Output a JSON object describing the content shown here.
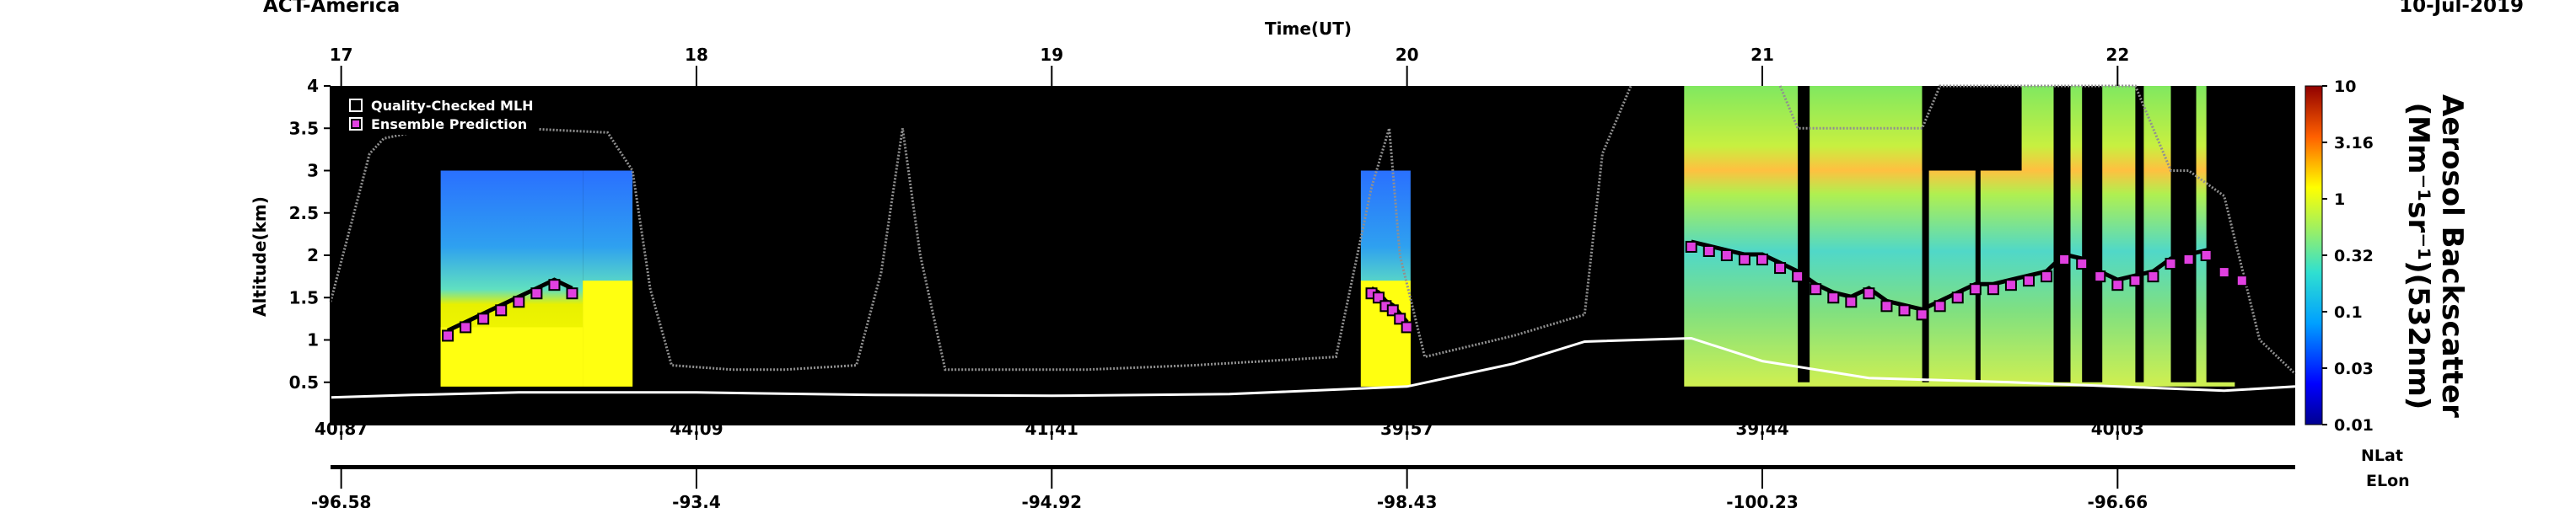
{
  "header": {
    "title": "ACT-America",
    "date": "10-Jul-2019"
  },
  "chart_data": {
    "type": "heatmap",
    "xlabel": "Time(UT)",
    "ylabel": "Altitude(km)",
    "xlim": [
      16.97,
      22.5
    ],
    "ylim": [
      0,
      4
    ],
    "x_ticks": [
      "17",
      "18",
      "19",
      "20",
      "21",
      "22"
    ],
    "y_ticks": [
      "0.5",
      "1",
      "1.5",
      "2",
      "2.5",
      "3",
      "3.5",
      "4"
    ],
    "nlat_ticks": [
      "40.87",
      "44.09",
      "41.41",
      "39.57",
      "39.44",
      "40.03"
    ],
    "elon_ticks": [
      "-96.58",
      "-93.4",
      "-94.92",
      "-98.43",
      "-100.23",
      "-96.66"
    ],
    "nlat_label": "NLat",
    "elon_label": "ELon",
    "colorbar": {
      "title_line1": "Aerosol Backscatter",
      "title_line2": "(Mm⁻¹sr⁻¹)(532nm)",
      "scale": "log",
      "ticks": [
        "10",
        "3.16",
        "1",
        "0.32",
        "0.1",
        "0.03",
        "0.01"
      ]
    },
    "legend": [
      {
        "label": "Quality-Checked MLH",
        "color": "#ffffff"
      },
      {
        "label": "Ensemble Prediction",
        "color": "#e040e0"
      }
    ],
    "series": {
      "aircraft_altitude": {
        "x": [
          16.97,
          17.03,
          17.08,
          17.12,
          17.2,
          17.35,
          17.5,
          17.75,
          17.82,
          17.87,
          17.93,
          18.1,
          18.25,
          18.45,
          18.52,
          18.58,
          18.63,
          18.7,
          18.85,
          19.1,
          19.4,
          19.8,
          19.9,
          19.95,
          19.98,
          20.05,
          20.3,
          20.5,
          20.55,
          20.63
        ],
        "y": [
          1.45,
          2.4,
          3.2,
          3.38,
          3.45,
          3.5,
          3.5,
          3.45,
          3.0,
          1.6,
          0.7,
          0.65,
          0.65,
          0.7,
          1.8,
          3.5,
          2.0,
          0.65,
          0.65,
          0.65,
          0.7,
          0.8,
          2.8,
          3.5,
          2.0,
          0.8,
          1.05,
          1.3,
          3.2,
          4.0
        ]
      },
      "aircraft_altitude_late": {
        "x": [
          21.05,
          21.1,
          21.45,
          21.5,
          21.6,
          21.75,
          22.05,
          22.15,
          22.2,
          22.3,
          22.4,
          22.5
        ],
        "y": [
          4.0,
          3.5,
          3.5,
          4.0,
          4.0,
          4.0,
          4.0,
          3.0,
          3.0,
          2.7,
          1.0,
          0.6
        ]
      },
      "terrain_mlh": {
        "x": [
          16.97,
          17.2,
          17.5,
          18.0,
          18.5,
          19.0,
          19.5,
          20.0,
          20.3,
          20.5,
          20.8,
          21.0,
          21.3,
          21.7,
          22.0,
          22.3,
          22.5
        ],
        "y": [
          0.32,
          0.35,
          0.38,
          0.38,
          0.35,
          0.34,
          0.36,
          0.45,
          0.72,
          0.98,
          1.02,
          0.75,
          0.55,
          0.5,
          0.45,
          0.4,
          0.45
        ]
      },
      "ensemble_prediction": {
        "x": [
          17.3,
          17.35,
          17.4,
          17.45,
          17.5,
          17.55,
          17.6,
          17.65,
          19.9,
          19.92,
          19.94,
          19.96,
          19.98,
          20.0,
          20.8,
          20.85,
          20.9,
          20.95,
          21.0,
          21.05,
          21.1,
          21.15,
          21.2,
          21.25,
          21.3,
          21.35,
          21.4,
          21.45,
          21.5,
          21.55,
          21.6,
          21.65,
          21.7,
          21.75,
          21.8,
          21.85,
          21.9,
          21.95,
          22.0,
          22.05,
          22.1,
          22.15,
          22.2,
          22.25,
          22.3,
          22.35
        ],
        "y": [
          1.05,
          1.15,
          1.25,
          1.35,
          1.45,
          1.55,
          1.65,
          1.55,
          1.55,
          1.5,
          1.4,
          1.35,
          1.25,
          1.15,
          2.1,
          2.05,
          2.0,
          1.95,
          1.95,
          1.85,
          1.75,
          1.6,
          1.5,
          1.45,
          1.55,
          1.4,
          1.35,
          1.3,
          1.4,
          1.5,
          1.6,
          1.6,
          1.65,
          1.7,
          1.75,
          1.95,
          1.9,
          1.75,
          1.65,
          1.7,
          1.75,
          1.9,
          1.95,
          2.0,
          1.8,
          1.7
        ]
      }
    },
    "data_blocks": [
      {
        "x0": 17.28,
        "x1": 17.68,
        "y_top": 3.0,
        "y_top_clear": 1.65,
        "mlh_at_start": 1.05,
        "mlh_at_end": 1.55
      },
      {
        "x0": 17.68,
        "x1": 17.82,
        "y_top": 3.0,
        "y_top_clear": 2.1,
        "mlh_at_start": 1.6,
        "mlh_at_end": 1.6
      },
      {
        "x0": 19.87,
        "x1": 20.01,
        "y_top": 3.0,
        "y_top_clear": 1.8,
        "mlh_at_start": 1.6,
        "mlh_at_end": 1.1
      },
      {
        "x0": 20.78,
        "x1": 22.33,
        "y_top": 4.0,
        "y_top_clear": 4.0,
        "mlh_at_start": 2.1,
        "mlh_at_end": 1.7
      }
    ],
    "colors": {
      "plot_background": "#000000",
      "aircraft": "#909090",
      "terrain": "#ffffff",
      "ensemble_fill": "#e040e0"
    }
  }
}
